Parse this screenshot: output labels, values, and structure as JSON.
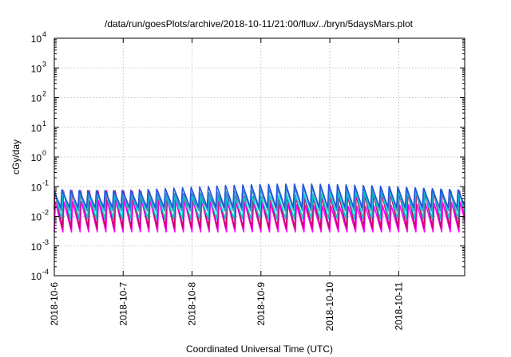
{
  "chart_data": {
    "type": "line",
    "title": "/data/run/goesPlots/archive/2018-10-11/21:00/flux/../bryn/5daysMars.plot",
    "xlabel": "Coordinated Universal Time (UTC)",
    "ylabel": "cGy/day",
    "y_scale": "log",
    "ylim": [
      0.0001,
      10000
    ],
    "xlim": [
      "2018-10-06",
      "2018-10-11T23:00"
    ],
    "y_ticks": [
      {
        "base": "10",
        "exp": "-4"
      },
      {
        "base": "10",
        "exp": "-3"
      },
      {
        "base": "10",
        "exp": "-2"
      },
      {
        "base": "10",
        "exp": "-1"
      },
      {
        "base": "10",
        "exp": "0"
      },
      {
        "base": "10",
        "exp": "1"
      },
      {
        "base": "10",
        "exp": "2"
      },
      {
        "base": "10",
        "exp": "3"
      },
      {
        "base": "10",
        "exp": "4"
      }
    ],
    "x_ticks": [
      "2018-10-6",
      "2018-10-7",
      "2018-10-8",
      "2018-10-9",
      "2018-10-10",
      "2018-10-11"
    ],
    "grid": true,
    "legend": "none",
    "approx_cycle_hours": 3,
    "series": [
      {
        "color": "#ff00ff",
        "peak": 0.03,
        "trough": 0.003
      },
      {
        "color": "#cc0066",
        "peak": 0.06,
        "trough": 0.004
      },
      {
        "color": "#00cccc",
        "peak": 0.06,
        "trough": 0.008
      },
      {
        "color": "#3399cc",
        "peak": 0.08,
        "trough": 0.015
      },
      {
        "color": "#2255dd",
        "peak": 0.1,
        "trough": 0.02
      }
    ]
  }
}
